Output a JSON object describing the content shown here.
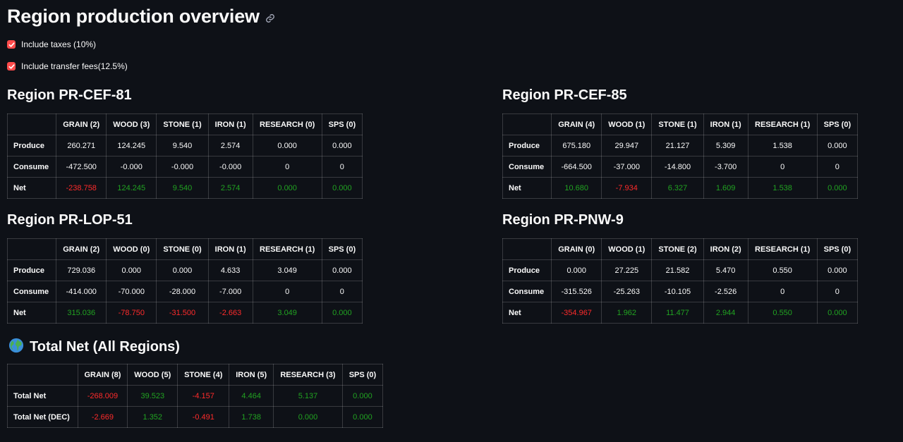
{
  "page": {
    "title": "Region production overview",
    "options": [
      {
        "label": "Include taxes (10%)",
        "checked": true
      },
      {
        "label": "Include transfer fees(12.5%)",
        "checked": true
      }
    ]
  },
  "regions": [
    {
      "title": "Region PR-CEF-81",
      "headers": [
        "GRAIN (2)",
        "WOOD (3)",
        "STONE (1)",
        "IRON (1)",
        "RESEARCH (0)",
        "SPS (0)"
      ],
      "rows": [
        {
          "label": "Produce",
          "values": [
            "260.271",
            "124.245",
            "9.540",
            "2.574",
            "0.000",
            "0.000"
          ]
        },
        {
          "label": "Consume",
          "values": [
            "-472.500",
            "-0.000",
            "-0.000",
            "-0.000",
            "0",
            "0"
          ]
        },
        {
          "label": "Net",
          "values": [
            "-238.758",
            "124.245",
            "9.540",
            "2.574",
            "0.000",
            "0.000"
          ]
        }
      ]
    },
    {
      "title": "Region PR-CEF-85",
      "headers": [
        "GRAIN (4)",
        "WOOD (1)",
        "STONE (1)",
        "IRON (1)",
        "RESEARCH (1)",
        "SPS (0)"
      ],
      "rows": [
        {
          "label": "Produce",
          "values": [
            "675.180",
            "29.947",
            "21.127",
            "5.309",
            "1.538",
            "0.000"
          ]
        },
        {
          "label": "Consume",
          "values": [
            "-664.500",
            "-37.000",
            "-14.800",
            "-3.700",
            "0",
            "0"
          ]
        },
        {
          "label": "Net",
          "values": [
            "10.680",
            "-7.934",
            "6.327",
            "1.609",
            "1.538",
            "0.000"
          ]
        }
      ]
    },
    {
      "title": "Region PR-LOP-51",
      "headers": [
        "GRAIN (2)",
        "WOOD (0)",
        "STONE (0)",
        "IRON (1)",
        "RESEARCH (1)",
        "SPS (0)"
      ],
      "rows": [
        {
          "label": "Produce",
          "values": [
            "729.036",
            "0.000",
            "0.000",
            "4.633",
            "3.049",
            "0.000"
          ]
        },
        {
          "label": "Consume",
          "values": [
            "-414.000",
            "-70.000",
            "-28.000",
            "-7.000",
            "0",
            "0"
          ]
        },
        {
          "label": "Net",
          "values": [
            "315.036",
            "-78.750",
            "-31.500",
            "-2.663",
            "3.049",
            "0.000"
          ]
        }
      ]
    },
    {
      "title": "Region PR-PNW-9",
      "headers": [
        "GRAIN (0)",
        "WOOD (1)",
        "STONE (2)",
        "IRON (2)",
        "RESEARCH (1)",
        "SPS (0)"
      ],
      "rows": [
        {
          "label": "Produce",
          "values": [
            "0.000",
            "27.225",
            "21.582",
            "5.470",
            "0.550",
            "0.000"
          ]
        },
        {
          "label": "Consume",
          "values": [
            "-315.526",
            "-25.263",
            "-10.105",
            "-2.526",
            "0",
            "0"
          ]
        },
        {
          "label": "Net",
          "values": [
            "-354.967",
            "1.962",
            "11.477",
            "2.944",
            "0.550",
            "0.000"
          ]
        }
      ]
    }
  ],
  "total": {
    "title": "Total Net (All Regions)",
    "headers": [
      "GRAIN (8)",
      "WOOD (5)",
      "STONE (4)",
      "IRON (5)",
      "RESEARCH (3)",
      "SPS (0)"
    ],
    "rows": [
      {
        "label": "Total Net",
        "values": [
          "-268.009",
          "39.523",
          "-4.157",
          "4.464",
          "5.137",
          "0.000"
        ]
      },
      {
        "label": "Total Net (DEC)",
        "values": [
          "-2.669",
          "1.352",
          "-0.491",
          "1.738",
          "0.000",
          "0.000"
        ]
      }
    ]
  },
  "colors": {
    "background": "#0e1117",
    "accent": "#ff4b4b",
    "positive": "#21a321",
    "negative": "#ff2b2b"
  },
  "icons": {
    "title_link": "link-icon",
    "total_title": "globe-icon",
    "checkbox": "check-icon"
  }
}
